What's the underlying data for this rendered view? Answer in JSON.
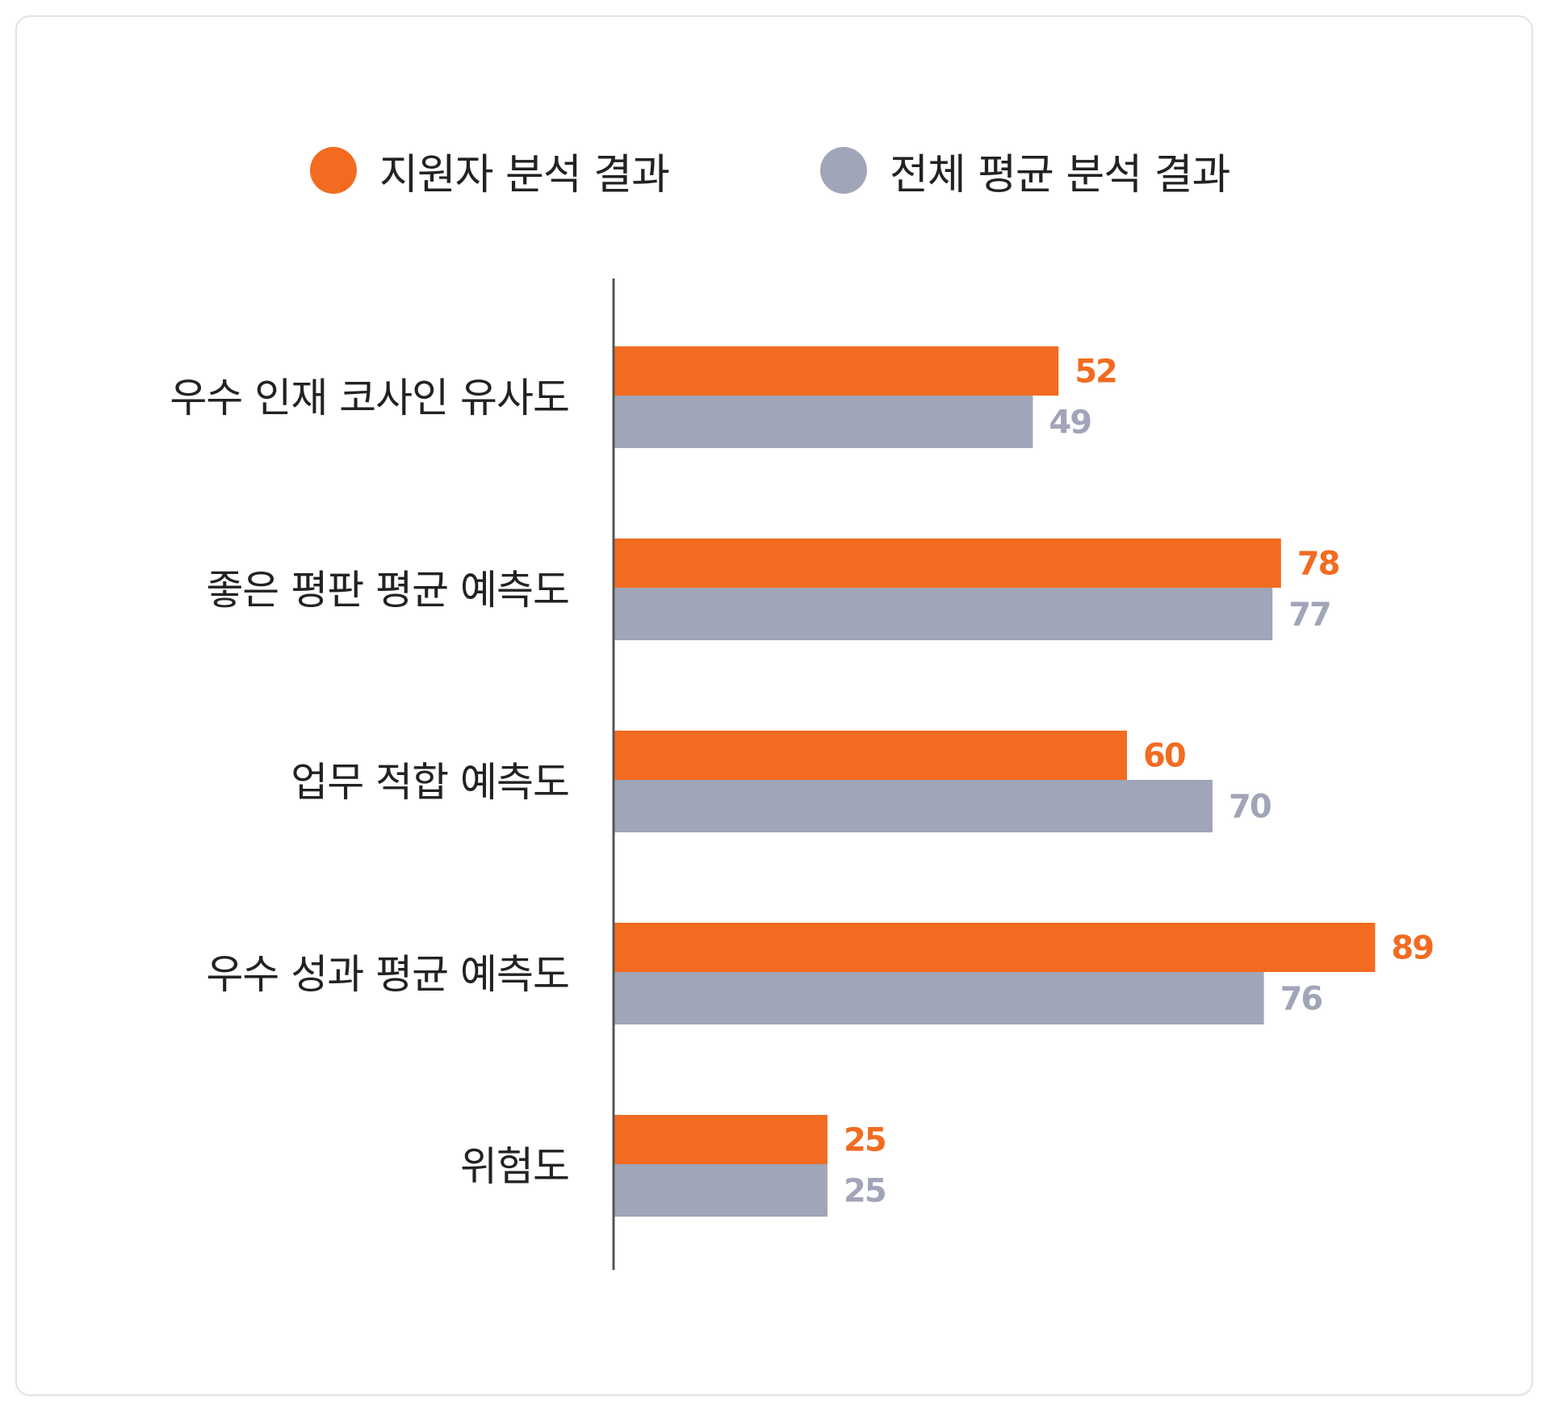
{
  "colors": {
    "applicant": "#f26b21",
    "average": "#a0a5b8"
  },
  "legend": {
    "applicant": "지원자 분석 결과",
    "average": "전체 평균 분석 결과"
  },
  "chart_data": {
    "type": "bar",
    "orientation": "horizontal",
    "categories": [
      "우수 인재 코사인 유사도",
      "좋은 평판 평균 예측도",
      "업무 적합 예측도",
      "우수 성과 평균 예측도",
      "위험도"
    ],
    "series": [
      {
        "name": "지원자 분석 결과",
        "values": [
          52,
          78,
          60,
          89,
          25
        ]
      },
      {
        "name": "전체 평균 분석 결과",
        "values": [
          49,
          77,
          70,
          76,
          25
        ]
      }
    ],
    "legend_position": "top",
    "grid": false
  }
}
